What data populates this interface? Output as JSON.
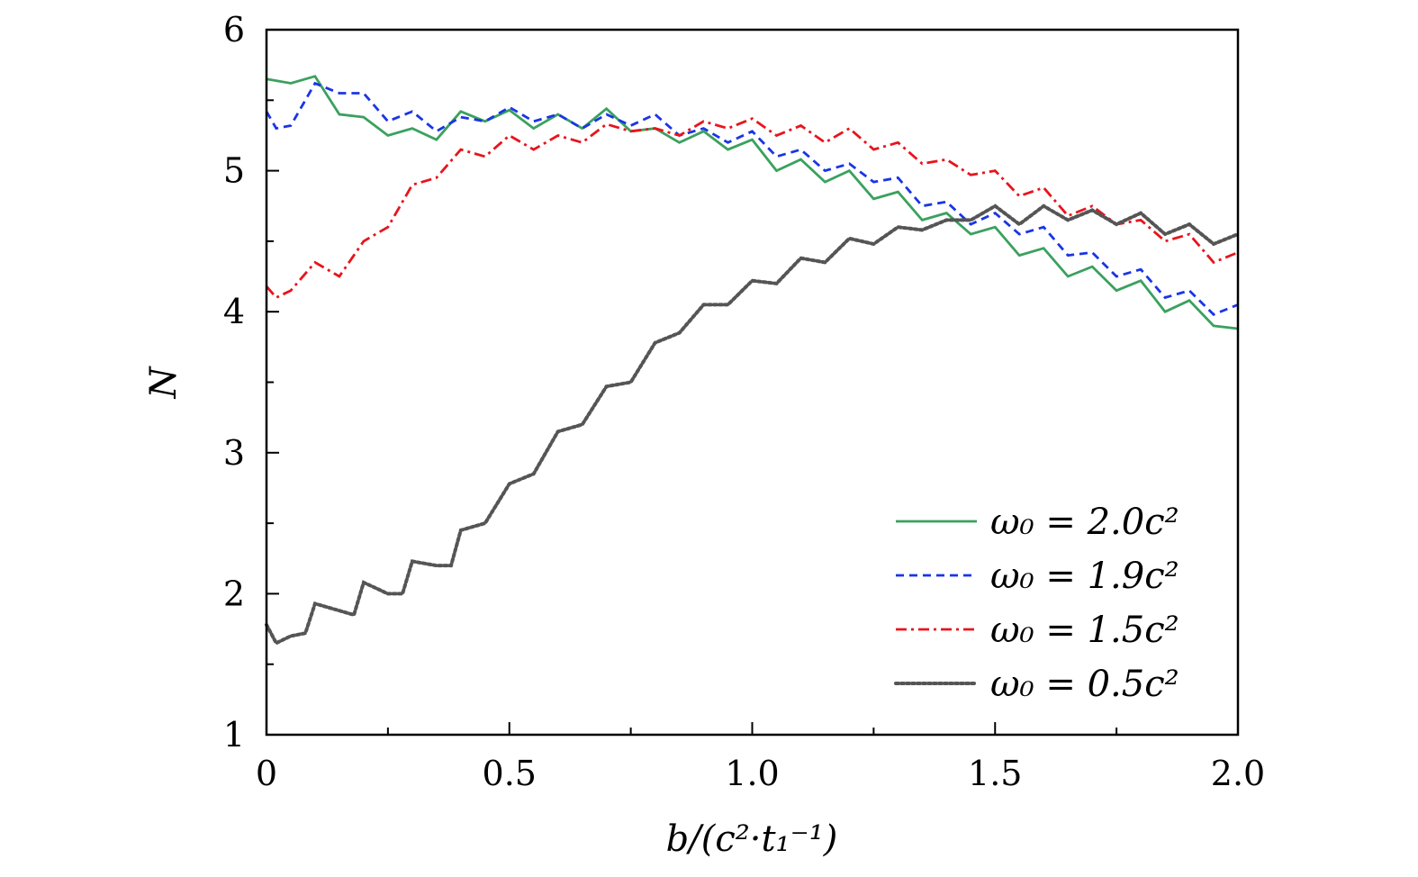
{
  "chart_data": {
    "type": "line",
    "title": "",
    "xlabel": "b/(c²·t₁⁻¹)",
    "ylabel": "N",
    "xlim": [
      0,
      2.0
    ],
    "ylim": [
      1,
      6
    ],
    "xticks": [
      "0",
      "0.5",
      "1.0",
      "1.5",
      "2.0"
    ],
    "xtick_values": [
      0,
      0.5,
      1.0,
      1.5,
      2.0
    ],
    "yticks": [
      "1",
      "2",
      "3",
      "4",
      "5",
      "6"
    ],
    "ytick_values": [
      1,
      2,
      3,
      4,
      5,
      6
    ],
    "grid": false,
    "legend_position": "bottom-right",
    "series": [
      {
        "name": "ω₀ = 2.0c²",
        "color": "#3aa15e",
        "style": "solid",
        "x": [
          0,
          0.05,
          0.1,
          0.15,
          0.2,
          0.25,
          0.3,
          0.35,
          0.4,
          0.45,
          0.5,
          0.55,
          0.6,
          0.65,
          0.7,
          0.75,
          0.8,
          0.85,
          0.9,
          0.95,
          1.0,
          1.05,
          1.1,
          1.15,
          1.2,
          1.25,
          1.3,
          1.35,
          1.4,
          1.45,
          1.5,
          1.55,
          1.6,
          1.65,
          1.7,
          1.75,
          1.8,
          1.85,
          1.9,
          1.95,
          2.0
        ],
        "y": [
          5.65,
          5.62,
          5.67,
          5.4,
          5.38,
          5.25,
          5.3,
          5.22,
          5.42,
          5.35,
          5.43,
          5.3,
          5.4,
          5.3,
          5.44,
          5.28,
          5.3,
          5.2,
          5.28,
          5.15,
          5.22,
          5.0,
          5.08,
          4.92,
          5.0,
          4.8,
          4.85,
          4.65,
          4.7,
          4.55,
          4.6,
          4.4,
          4.45,
          4.25,
          4.32,
          4.15,
          4.22,
          4.0,
          4.08,
          3.9,
          3.88
        ]
      },
      {
        "name": "ω₀ = 1.9c²",
        "color": "#1a35e6",
        "style": "dashed",
        "x": [
          0,
          0.02,
          0.05,
          0.1,
          0.15,
          0.2,
          0.25,
          0.3,
          0.35,
          0.4,
          0.45,
          0.5,
          0.55,
          0.6,
          0.65,
          0.7,
          0.75,
          0.8,
          0.85,
          0.9,
          0.95,
          1.0,
          1.05,
          1.1,
          1.15,
          1.2,
          1.25,
          1.3,
          1.35,
          1.4,
          1.45,
          1.5,
          1.55,
          1.6,
          1.65,
          1.7,
          1.75,
          1.8,
          1.85,
          1.9,
          1.95,
          2.0
        ],
        "y": [
          5.42,
          5.3,
          5.32,
          5.62,
          5.55,
          5.55,
          5.35,
          5.42,
          5.28,
          5.38,
          5.35,
          5.45,
          5.35,
          5.4,
          5.3,
          5.4,
          5.32,
          5.4,
          5.25,
          5.3,
          5.2,
          5.28,
          5.1,
          5.15,
          5.0,
          5.05,
          4.92,
          4.95,
          4.75,
          4.78,
          4.62,
          4.7,
          4.55,
          4.6,
          4.4,
          4.42,
          4.25,
          4.3,
          4.1,
          4.15,
          3.98,
          4.05
        ]
      },
      {
        "name": "ω₀ = 1.5c²",
        "color": "#e8141c",
        "style": "dashdot",
        "x": [
          0,
          0.02,
          0.05,
          0.1,
          0.15,
          0.2,
          0.25,
          0.3,
          0.35,
          0.4,
          0.45,
          0.5,
          0.55,
          0.6,
          0.65,
          0.7,
          0.75,
          0.8,
          0.85,
          0.9,
          0.95,
          1.0,
          1.05,
          1.1,
          1.15,
          1.2,
          1.25,
          1.3,
          1.35,
          1.4,
          1.45,
          1.5,
          1.55,
          1.6,
          1.65,
          1.7,
          1.75,
          1.8,
          1.85,
          1.9,
          1.95,
          2.0
        ],
        "y": [
          4.18,
          4.1,
          4.15,
          4.35,
          4.25,
          4.5,
          4.6,
          4.9,
          4.95,
          5.15,
          5.1,
          5.25,
          5.15,
          5.25,
          5.2,
          5.33,
          5.28,
          5.3,
          5.25,
          5.35,
          5.3,
          5.37,
          5.25,
          5.32,
          5.2,
          5.3,
          5.15,
          5.2,
          5.05,
          5.08,
          4.97,
          5.0,
          4.82,
          4.88,
          4.68,
          4.75,
          4.62,
          4.65,
          4.5,
          4.55,
          4.35,
          4.42
        ]
      },
      {
        "name": "ω₀ = 0.5c²",
        "color": "#555555",
        "style": "dotted",
        "x": [
          0,
          0.02,
          0.05,
          0.08,
          0.1,
          0.15,
          0.18,
          0.2,
          0.25,
          0.28,
          0.3,
          0.35,
          0.38,
          0.4,
          0.45,
          0.5,
          0.55,
          0.6,
          0.65,
          0.7,
          0.75,
          0.8,
          0.85,
          0.9,
          0.95,
          1.0,
          1.05,
          1.1,
          1.15,
          1.2,
          1.25,
          1.3,
          1.35,
          1.4,
          1.45,
          1.5,
          1.55,
          1.6,
          1.65,
          1.7,
          1.75,
          1.8,
          1.85,
          1.9,
          1.95,
          2.0
        ],
        "y": [
          1.78,
          1.65,
          1.7,
          1.72,
          1.93,
          1.88,
          1.85,
          2.08,
          2.0,
          2.0,
          2.23,
          2.2,
          2.2,
          2.45,
          2.5,
          2.78,
          2.85,
          3.15,
          3.2,
          3.47,
          3.5,
          3.78,
          3.85,
          4.05,
          4.05,
          4.22,
          4.2,
          4.38,
          4.35,
          4.52,
          4.48,
          4.6,
          4.58,
          4.65,
          4.65,
          4.75,
          4.62,
          4.75,
          4.65,
          4.72,
          4.62,
          4.7,
          4.55,
          4.62,
          4.48,
          4.55
        ]
      }
    ]
  }
}
